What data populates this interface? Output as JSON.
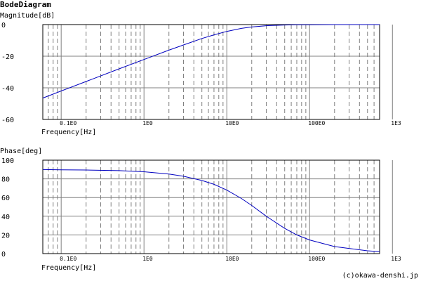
{
  "title": "BodeDiagram",
  "credit": "(c)okawa-denshi.jp",
  "colors": {
    "curve": "#0000c0",
    "grid_major": "#808080",
    "grid_minor": "#808080",
    "frame": "#000000"
  },
  "chart_data": [
    {
      "type": "line",
      "ylabel": "Magnitude[dB]",
      "xlabel": "Frequency[Hz]",
      "x_scale": "log",
      "xlim": [
        0.06,
        700
      ],
      "ylim": [
        -60,
        0
      ],
      "yticks": [
        0,
        -20,
        -40,
        -60
      ],
      "ytick_labels": [
        "0",
        "-20",
        "-40",
        "-60"
      ],
      "xticks": [
        0.1,
        1,
        10,
        100,
        1000
      ],
      "xtick_labels": [
        "0.1E0",
        "1E0",
        "10E0",
        "100E0",
        "1E3"
      ],
      "grid": true,
      "series": [
        {
          "x": [
            0.06,
            0.1,
            0.2,
            0.5,
            1,
            2,
            3,
            5,
            7,
            10,
            15,
            20,
            30,
            50,
            70,
            100,
            200,
            500,
            700
          ],
          "y": [
            -46.5,
            -42.0,
            -36.0,
            -28.0,
            -22.1,
            -16.2,
            -12.9,
            -8.8,
            -6.5,
            -4.3,
            -2.4,
            -1.5,
            -0.7,
            -0.27,
            -0.14,
            -0.07,
            -0.02,
            0.0,
            0.0
          ]
        }
      ]
    },
    {
      "type": "line",
      "ylabel": "Phase[deg]",
      "xlabel": "Frequency[Hz]",
      "x_scale": "log",
      "xlim": [
        0.06,
        700
      ],
      "ylim": [
        0,
        100
      ],
      "yticks": [
        100,
        80,
        60,
        40,
        20,
        0
      ],
      "ytick_labels": [
        "100",
        "80",
        "60",
        "40",
        "20",
        "0"
      ],
      "xticks": [
        0.1,
        1,
        10,
        100,
        1000
      ],
      "xtick_labels": [
        "0.1E0",
        "1E0",
        "10E0",
        "100E0",
        "1E3"
      ],
      "grid": true,
      "series": [
        {
          "x": [
            0.06,
            0.1,
            0.2,
            0.5,
            1,
            2,
            3,
            5,
            7,
            10,
            15,
            20,
            30,
            50,
            70,
            100,
            200,
            500,
            700
          ],
          "y": [
            89.9,
            89.7,
            89.5,
            88.8,
            87.6,
            85.2,
            82.8,
            78.3,
            74.1,
            68.0,
            59.0,
            51.5,
            40.0,
            27.0,
            20.0,
            14.6,
            7.5,
            3.0,
            2.1
          ]
        }
      ]
    }
  ]
}
